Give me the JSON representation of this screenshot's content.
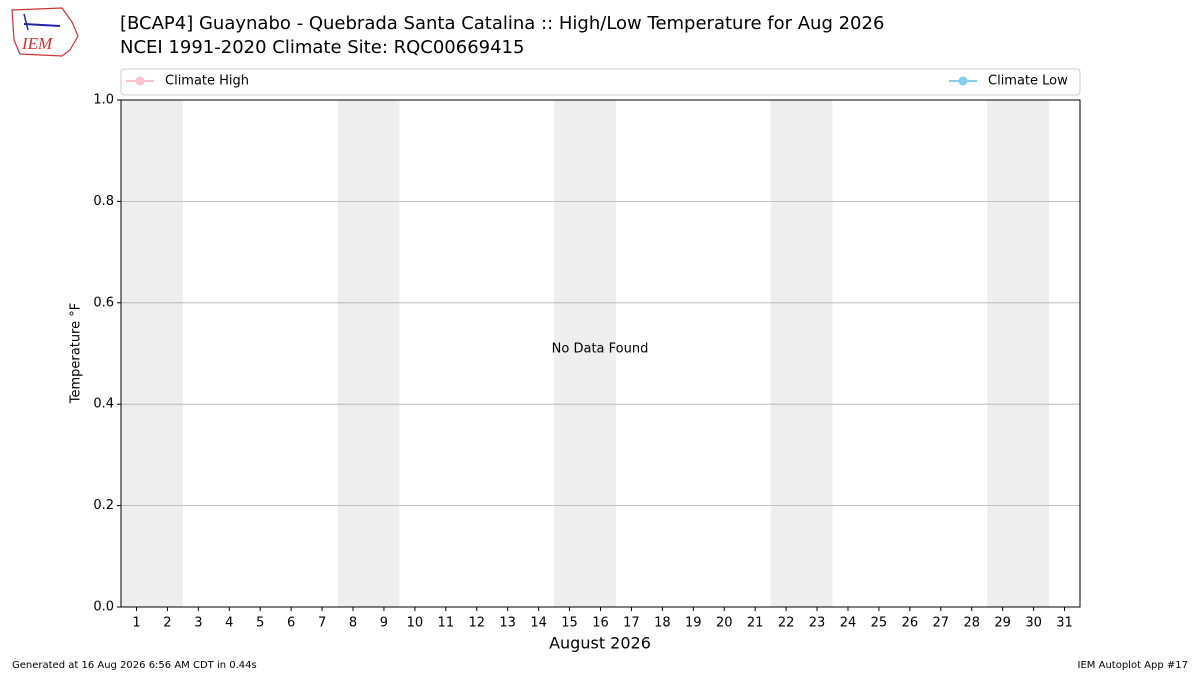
{
  "logo_text": "IEM",
  "chart_data": {
    "type": "line",
    "title": "[BCAP4] Guaynabo - Quebrada Santa Catalina :: High/Low Temperature for Aug 2026",
    "subtitle": "NCEI 1991-2020 Climate Site: RQC00669415",
    "ylabel": "Temperature °F",
    "xlabel": "August 2026",
    "annotation": "No Data Found",
    "x": [
      1,
      2,
      3,
      4,
      5,
      6,
      7,
      8,
      9,
      10,
      11,
      12,
      13,
      14,
      15,
      16,
      17,
      18,
      19,
      20,
      21,
      22,
      23,
      24,
      25,
      26,
      27,
      28,
      29,
      30,
      31
    ],
    "series": [
      {
        "name": "Climate High",
        "color": "#ffc0cb",
        "values": [
          null,
          null,
          null,
          null,
          null,
          null,
          null,
          null,
          null,
          null,
          null,
          null,
          null,
          null,
          null,
          null,
          null,
          null,
          null,
          null,
          null,
          null,
          null,
          null,
          null,
          null,
          null,
          null,
          null,
          null,
          null
        ]
      },
      {
        "name": "Climate Low",
        "color": "#87ceeb",
        "values": [
          null,
          null,
          null,
          null,
          null,
          null,
          null,
          null,
          null,
          null,
          null,
          null,
          null,
          null,
          null,
          null,
          null,
          null,
          null,
          null,
          null,
          null,
          null,
          null,
          null,
          null,
          null,
          null,
          null,
          null,
          null
        ]
      }
    ],
    "xlim": [
      0.5,
      31.5
    ],
    "xticks": [
      1,
      2,
      3,
      4,
      5,
      6,
      7,
      8,
      9,
      10,
      11,
      12,
      13,
      14,
      15,
      16,
      17,
      18,
      19,
      20,
      21,
      22,
      23,
      24,
      25,
      26,
      27,
      28,
      29,
      30,
      31
    ],
    "ylim": [
      0,
      1
    ],
    "yticks": [
      {
        "value": 0,
        "label": "0.0"
      },
      0.2,
      0.4,
      0.6,
      0.8,
      {
        "value": 1,
        "label": "1.0"
      }
    ],
    "grid": true,
    "shaded_ranges": [
      [
        0.5,
        2.5
      ],
      [
        7.5,
        9.5
      ],
      [
        14.5,
        16.5
      ],
      [
        21.5,
        23.5
      ],
      [
        28.5,
        30.5
      ]
    ],
    "shade_color": "#eeeeee"
  },
  "footer": {
    "left": "Generated at 16 Aug 2026 6:56 AM CDT in 0.44s",
    "right": "IEM Autoplot App #17"
  }
}
